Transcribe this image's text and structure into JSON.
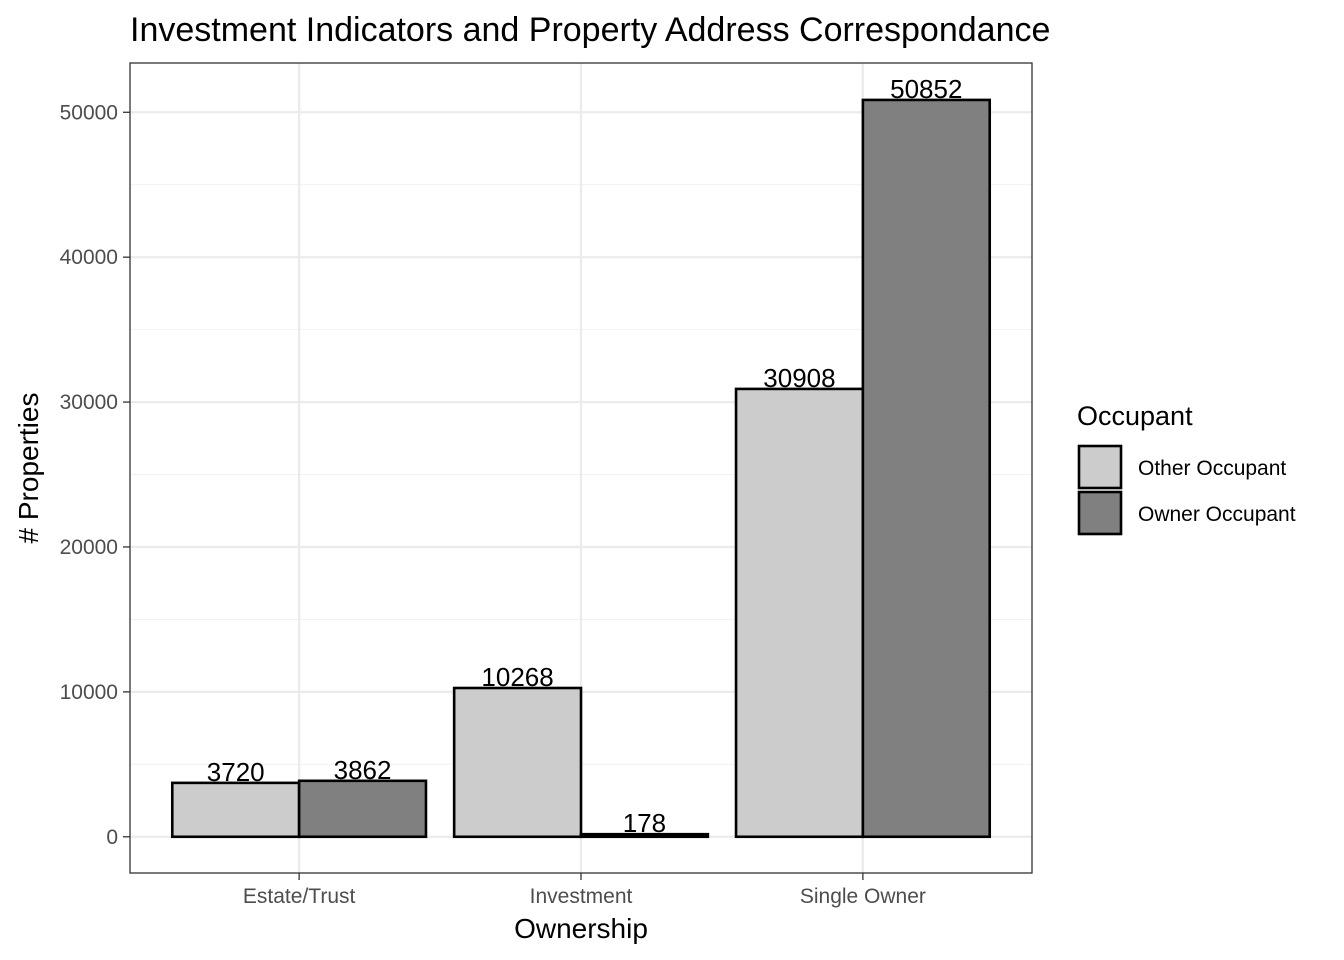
{
  "chart_data": {
    "type": "bar",
    "title": "Investment Indicators and Property Address Correspondance",
    "xlabel": "Ownership",
    "ylabel": "# Properties",
    "categories": [
      "Estate/Trust",
      "Investment",
      "Single Owner"
    ],
    "series": [
      {
        "name": "Other Occupant",
        "values": [
          3720,
          10268,
          30908
        ],
        "color": "#cccccc"
      },
      {
        "name": "Owner Occupant",
        "values": [
          3862,
          178,
          50852
        ],
        "color": "#808080"
      }
    ],
    "ylim": [
      -2500,
      53400
    ],
    "yticks": [
      0,
      10000,
      20000,
      30000,
      40000,
      50000
    ],
    "ytick_labels": [
      "0",
      "10000",
      "20000",
      "30000",
      "40000",
      "50000"
    ],
    "grid": true,
    "legend": {
      "title": "Occupant",
      "placement": "right"
    },
    "bar_outline_color": "#000000"
  }
}
